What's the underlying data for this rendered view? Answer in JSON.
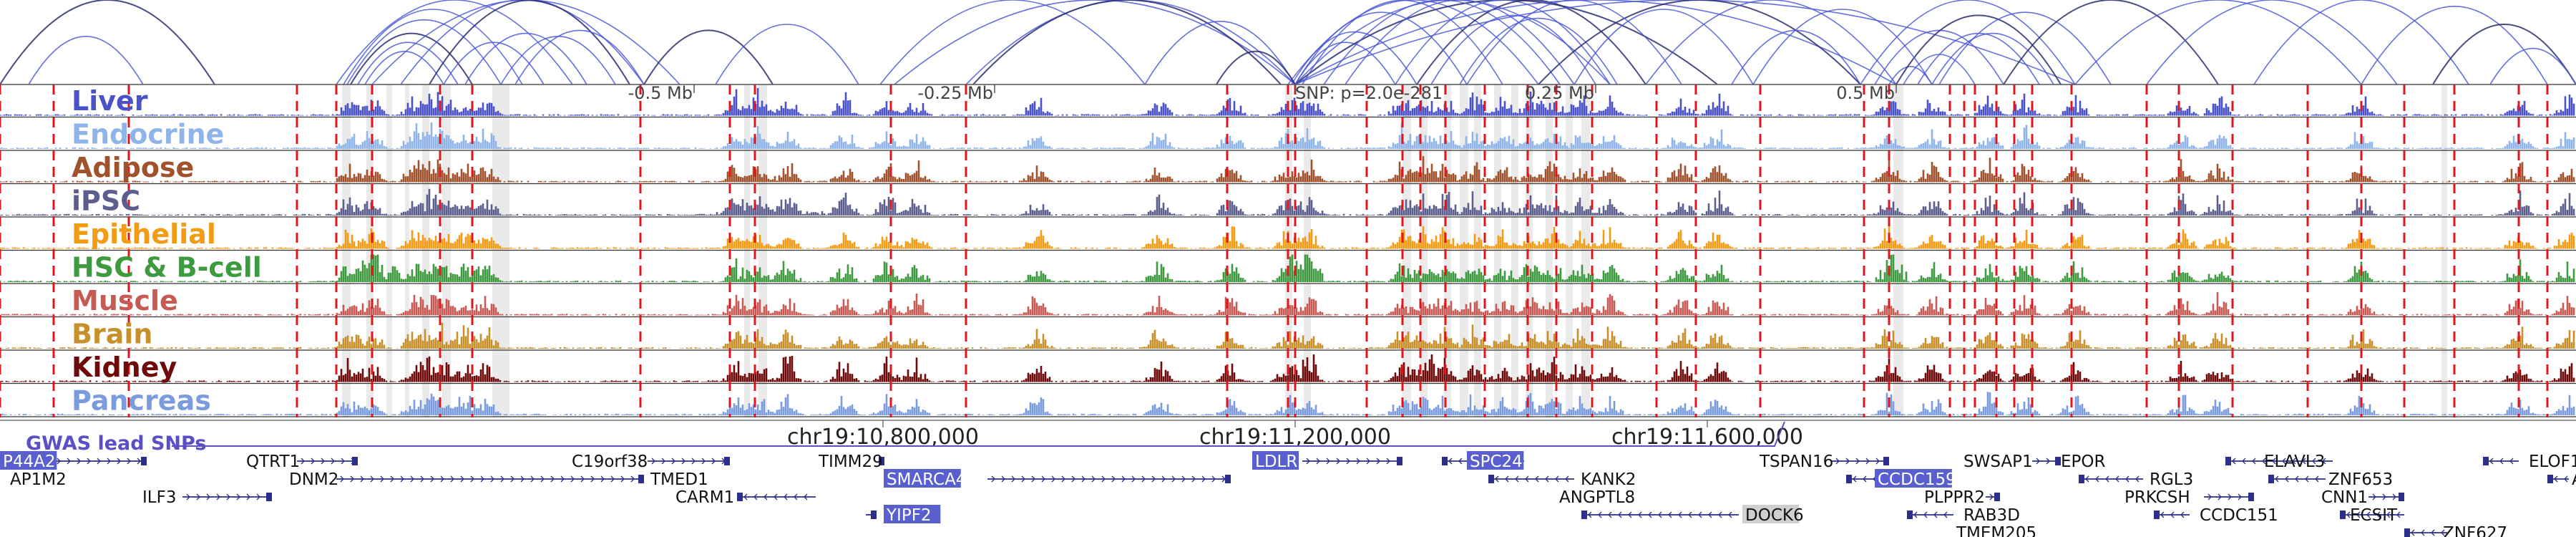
{
  "axis": {
    "offset_labels": [
      {
        "text": "-0.5 Mb",
        "offset": -0.5
      },
      {
        "text": "-0.25 Mb",
        "offset": -0.25
      },
      {
        "text": "0.25 Mb",
        "offset": 0.25
      },
      {
        "text": "0.5 Mb",
        "offset": 0.5
      }
    ],
    "lead_snp_label": "SNP: p=2.0e-281",
    "genomic_labels": [
      {
        "text": "chr19:10,800,000",
        "mb": 10.8
      },
      {
        "text": "chr19:11,200,000",
        "mb": 11.2
      },
      {
        "text": "chr19:11,600,000",
        "mb": 11.6
      }
    ]
  },
  "tracks": [
    {
      "name": "Liver",
      "color": "#4a52c9"
    },
    {
      "name": "Endocrine",
      "color": "#8fb4ea"
    },
    {
      "name": "Adipose",
      "color": "#a0522d"
    },
    {
      "name": "iPSC",
      "color": "#5c5e8e"
    },
    {
      "name": "Epithelial",
      "color": "#f39b12"
    },
    {
      "name": "HSC & B-cell",
      "color": "#3e9a3e"
    },
    {
      "name": "Muscle",
      "color": "#c85a54"
    },
    {
      "name": "Brain",
      "color": "#c8902a"
    },
    {
      "name": "Kidney",
      "color": "#6e0a0a"
    },
    {
      "name": "Pancreas",
      "color": "#7b9bdf"
    }
  ],
  "gwas_label": "GWAS lead SNPs",
  "genes": [
    {
      "name": "P44A2",
      "highlight": true
    },
    {
      "name": "AP1M2"
    },
    {
      "name": "ILF3"
    },
    {
      "name": "QTRT1"
    },
    {
      "name": "DNM2"
    },
    {
      "name": "C19orf38"
    },
    {
      "name": "TMED1"
    },
    {
      "name": "CARM1"
    },
    {
      "name": "TIMM29"
    },
    {
      "name": "SMARCA4",
      "highlight": true
    },
    {
      "name": "YIPF2",
      "highlight": true
    },
    {
      "name": "LDLR",
      "highlight": true
    },
    {
      "name": "SPC24",
      "highlight": true
    },
    {
      "name": "KANK2"
    },
    {
      "name": "ANGPTL8"
    },
    {
      "name": "DOCK6",
      "grey": true
    },
    {
      "name": "TSPAN16"
    },
    {
      "name": "CCDC159",
      "highlight": true
    },
    {
      "name": "SWSAP1"
    },
    {
      "name": "EPOR"
    },
    {
      "name": "PLPPR2"
    },
    {
      "name": "RAB3D"
    },
    {
      "name": "TMEM205"
    },
    {
      "name": "RGL3"
    },
    {
      "name": "PRKCSH"
    },
    {
      "name": "CCDC151"
    },
    {
      "name": "ELAVL3"
    },
    {
      "name": "ZNF653"
    },
    {
      "name": "CNN1"
    },
    {
      "name": "ECSIT"
    },
    {
      "name": "ZNF627"
    },
    {
      "name": "ELOF1"
    },
    {
      "name": "AC"
    }
  ]
}
